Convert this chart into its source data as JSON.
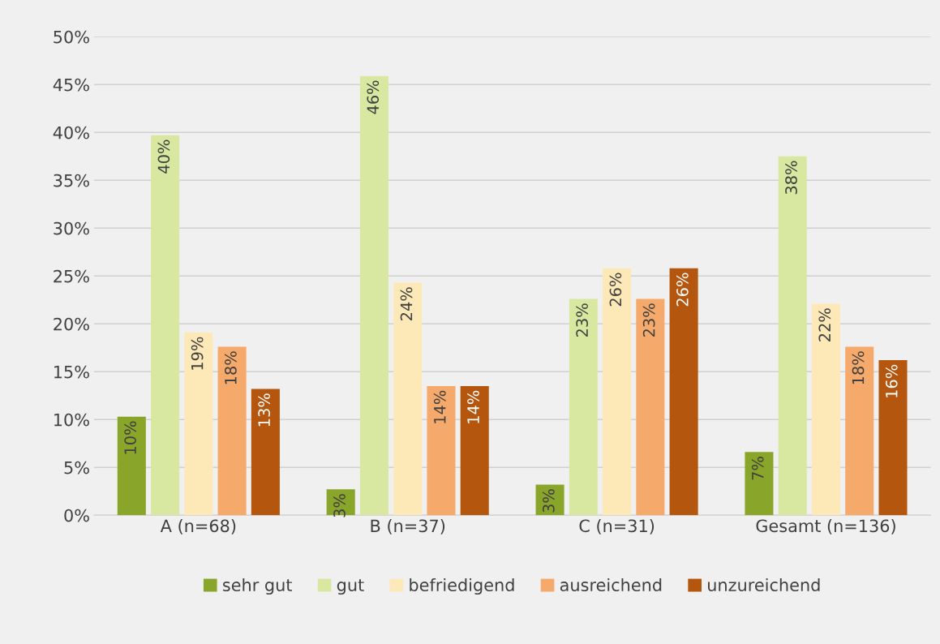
{
  "chart_data": {
    "type": "bar",
    "categories": [
      "A (n=68)",
      "B (n=37)",
      "C (n=31)",
      "Gesamt (n=136)"
    ],
    "series": [
      {
        "name": "sehr gut",
        "color": "#8aa62a",
        "values": [
          10.3,
          2.7,
          3.2,
          6.6
        ],
        "value_labels": [
          "10%",
          "3%",
          "3%",
          "7%"
        ]
      },
      {
        "name": "gut",
        "color": "#d9e8a0",
        "values": [
          39.7,
          45.9,
          22.6,
          37.5
        ],
        "value_labels": [
          "40%",
          "46%",
          "23%",
          "38%"
        ]
      },
      {
        "name": "befriedigend",
        "color": "#fde9b8",
        "values": [
          19.1,
          24.3,
          25.8,
          22.1
        ],
        "value_labels": [
          "19%",
          "24%",
          "26%",
          "22%"
        ]
      },
      {
        "name": "ausreichend",
        "color": "#f5a96b",
        "values": [
          17.6,
          13.5,
          22.6,
          17.6
        ],
        "value_labels": [
          "18%",
          "14%",
          "23%",
          "18%"
        ]
      },
      {
        "name": "unzureichend",
        "color": "#b5560f",
        "values": [
          13.2,
          13.5,
          25.8,
          16.2
        ],
        "value_labels": [
          "13%",
          "14%",
          "26%",
          "16%"
        ]
      }
    ],
    "ylim": [
      0,
      50
    ],
    "yticks": [
      {
        "value": 0,
        "label": "0%"
      },
      {
        "value": 5,
        "label": "5%"
      },
      {
        "value": 10,
        "label": "10%"
      },
      {
        "value": 15,
        "label": "15%"
      },
      {
        "value": 20,
        "label": "20%"
      },
      {
        "value": 25,
        "label": "25%"
      },
      {
        "value": 30,
        "label": "30%"
      },
      {
        "value": 35,
        "label": "35%"
      },
      {
        "value": 40,
        "label": "40%"
      },
      {
        "value": 45,
        "label": "45%"
      },
      {
        "value": 50,
        "label": "50%"
      }
    ],
    "grid": "y",
    "legend": "bottom"
  }
}
